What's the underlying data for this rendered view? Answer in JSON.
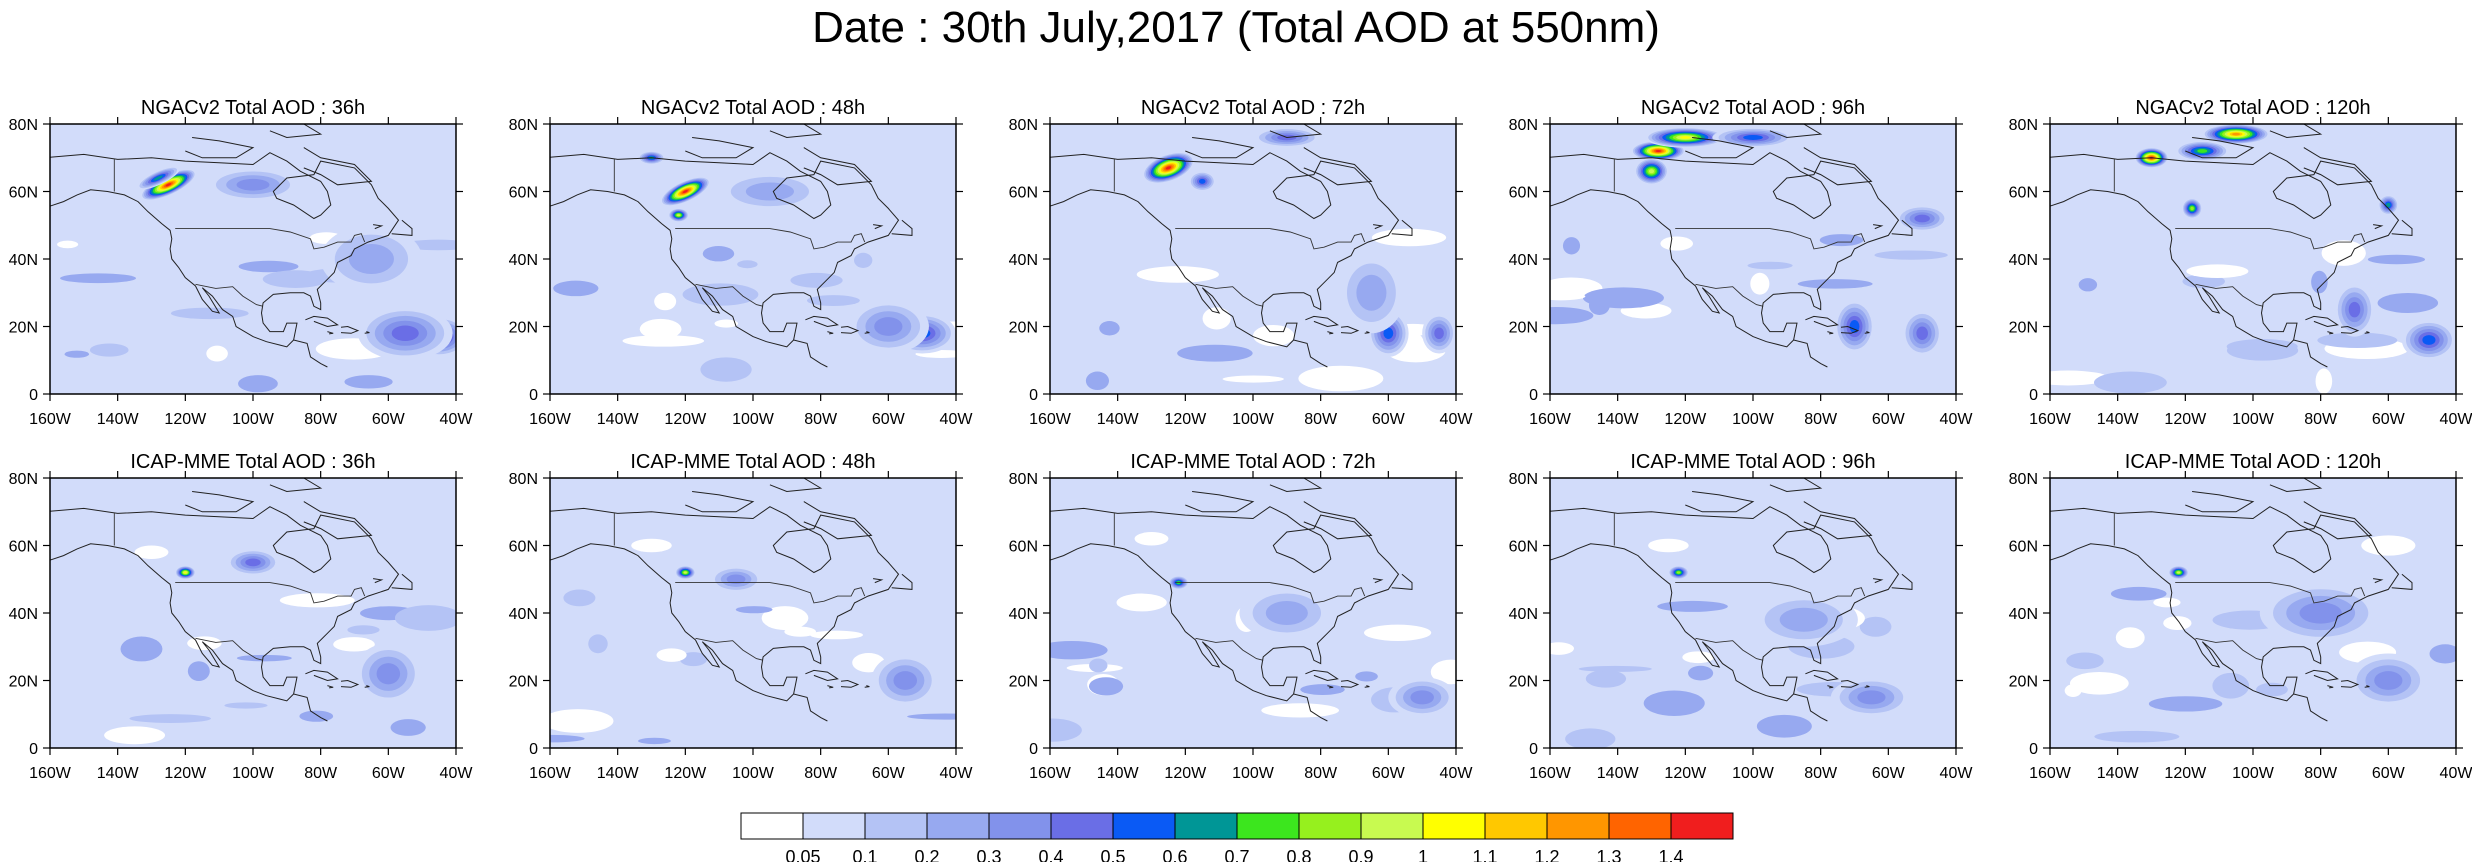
{
  "title": "Date : 30th July,2017 (Total AOD at 550nm)",
  "axes": {
    "lon_ticks": [
      "160W",
      "140W",
      "120W",
      "100W",
      "80W",
      "60W",
      "40W"
    ],
    "lat_ticks": [
      "80N",
      "60N",
      "40N",
      "20N",
      "0"
    ],
    "lon_range": [
      -160,
      -40
    ],
    "lat_range": [
      0,
      80
    ]
  },
  "panels": [
    {
      "title": "NGACv2 Total AOD : 36h",
      "blobs": [
        {
          "lon": -125,
          "lat": 62,
          "rx": 9,
          "ry": 3,
          "v": 1.4,
          "rot": -25
        },
        {
          "lon": -128,
          "lat": 64,
          "rx": 7,
          "ry": 2,
          "v": 0.6,
          "rot": -25
        },
        {
          "lon": -45,
          "lat": 17,
          "rx": 9,
          "ry": 6,
          "v": 0.6,
          "rot": 0
        },
        {
          "lon": -55,
          "lat": 18,
          "rx": 14,
          "ry": 8,
          "v": 0.4,
          "rot": 0
        },
        {
          "lon": -100,
          "lat": 62,
          "rx": 14,
          "ry": 5,
          "v": 0.3,
          "rot": 0
        },
        {
          "lon": -65,
          "lat": 40,
          "rx": 15,
          "ry": 10,
          "v": 0.2,
          "rot": 0
        }
      ]
    },
    {
      "title": "NGACv2 Total AOD : 48h",
      "blobs": [
        {
          "lon": -120,
          "lat": 60,
          "rx": 8,
          "ry": 3,
          "v": 1.4,
          "rot": -25
        },
        {
          "lon": -130,
          "lat": 70,
          "rx": 4,
          "ry": 2,
          "v": 0.6,
          "rot": 0
        },
        {
          "lon": -122,
          "lat": 53,
          "rx": 3,
          "ry": 2,
          "v": 0.9,
          "rot": 0
        },
        {
          "lon": -50,
          "lat": 18,
          "rx": 10,
          "ry": 6,
          "v": 0.5,
          "rot": 0
        },
        {
          "lon": -60,
          "lat": 20,
          "rx": 12,
          "ry": 8,
          "v": 0.3,
          "rot": 0
        },
        {
          "lon": -95,
          "lat": 60,
          "rx": 16,
          "ry": 6,
          "v": 0.25,
          "rot": 0
        }
      ]
    },
    {
      "title": "NGACv2 Total AOD : 72h",
      "blobs": [
        {
          "lon": -125,
          "lat": 67,
          "rx": 8,
          "ry": 4,
          "v": 1.4,
          "rot": -20
        },
        {
          "lon": -115,
          "lat": 63,
          "rx": 4,
          "ry": 3,
          "v": 0.5,
          "rot": 0
        },
        {
          "lon": -60,
          "lat": 18,
          "rx": 6,
          "ry": 7,
          "v": 0.55,
          "rot": 0
        },
        {
          "lon": -45,
          "lat": 18,
          "rx": 5,
          "ry": 6,
          "v": 0.4,
          "rot": 0
        },
        {
          "lon": -90,
          "lat": 76,
          "rx": 10,
          "ry": 3,
          "v": 0.45,
          "rot": 0
        },
        {
          "lon": -65,
          "lat": 30,
          "rx": 10,
          "ry": 12,
          "v": 0.25,
          "rot": 0
        }
      ]
    },
    {
      "title": "NGACv2 Total AOD : 96h",
      "blobs": [
        {
          "lon": -128,
          "lat": 72,
          "rx": 8,
          "ry": 3,
          "v": 1.4,
          "rot": 0
        },
        {
          "lon": -120,
          "lat": 76,
          "rx": 12,
          "ry": 3,
          "v": 1.0,
          "rot": 0
        },
        {
          "lon": -130,
          "lat": 66,
          "rx": 5,
          "ry": 4,
          "v": 0.9,
          "rot": 0
        },
        {
          "lon": -100,
          "lat": 76,
          "rx": 12,
          "ry": 3,
          "v": 0.5,
          "rot": 0
        },
        {
          "lon": -70,
          "lat": 20,
          "rx": 6,
          "ry": 8,
          "v": 0.55,
          "rot": 0
        },
        {
          "lon": -50,
          "lat": 18,
          "rx": 6,
          "ry": 7,
          "v": 0.45,
          "rot": 0
        },
        {
          "lon": -50,
          "lat": 52,
          "rx": 8,
          "ry": 4,
          "v": 0.4,
          "rot": 0
        }
      ]
    },
    {
      "title": "NGACv2 Total AOD : 120h",
      "blobs": [
        {
          "lon": -130,
          "lat": 70,
          "rx": 5,
          "ry": 3,
          "v": 1.4,
          "rot": 0
        },
        {
          "lon": -105,
          "lat": 77,
          "rx": 10,
          "ry": 3,
          "v": 1.2,
          "rot": 0
        },
        {
          "lon": -115,
          "lat": 72,
          "rx": 8,
          "ry": 3,
          "v": 0.7,
          "rot": 0
        },
        {
          "lon": -118,
          "lat": 55,
          "rx": 3,
          "ry": 3,
          "v": 0.8,
          "rot": 0
        },
        {
          "lon": -70,
          "lat": 25,
          "rx": 6,
          "ry": 8,
          "v": 0.4,
          "rot": 0
        },
        {
          "lon": -48,
          "lat": 16,
          "rx": 8,
          "ry": 6,
          "v": 0.5,
          "rot": 0
        },
        {
          "lon": -60,
          "lat": 56,
          "rx": 3,
          "ry": 3,
          "v": 0.6,
          "rot": 0
        }
      ]
    },
    {
      "title": "ICAP-MME Total AOD : 36h",
      "blobs": [
        {
          "lon": -120,
          "lat": 52,
          "rx": 3,
          "ry": 2,
          "v": 1.0,
          "rot": 0
        },
        {
          "lon": -100,
          "lat": 55,
          "rx": 8,
          "ry": 4,
          "v": 0.4,
          "rot": 0
        },
        {
          "lon": -60,
          "lat": 22,
          "rx": 10,
          "ry": 9,
          "v": 0.35,
          "rot": 0
        },
        {
          "lon": -130,
          "lat": 58,
          "rx": 5,
          "ry": 2,
          "v": 0.02,
          "rot": 0
        }
      ]
    },
    {
      "title": "ICAP-MME Total AOD : 48h",
      "blobs": [
        {
          "lon": -120,
          "lat": 52,
          "rx": 3,
          "ry": 2,
          "v": 0.9,
          "rot": 0
        },
        {
          "lon": -105,
          "lat": 50,
          "rx": 8,
          "ry": 4,
          "v": 0.3,
          "rot": 0
        },
        {
          "lon": -55,
          "lat": 20,
          "rx": 10,
          "ry": 8,
          "v": 0.35,
          "rot": 0
        },
        {
          "lon": -130,
          "lat": 60,
          "rx": 6,
          "ry": 2,
          "v": 0.02,
          "rot": 0
        }
      ]
    },
    {
      "title": "ICAP-MME Total AOD : 72h",
      "blobs": [
        {
          "lon": -122,
          "lat": 49,
          "rx": 3,
          "ry": 2,
          "v": 0.7,
          "rot": 0
        },
        {
          "lon": -90,
          "lat": 40,
          "rx": 14,
          "ry": 8,
          "v": 0.25,
          "rot": 0
        },
        {
          "lon": -50,
          "lat": 15,
          "rx": 10,
          "ry": 6,
          "v": 0.35,
          "rot": 0
        },
        {
          "lon": -130,
          "lat": 62,
          "rx": 5,
          "ry": 2,
          "v": 0.02,
          "rot": 0
        }
      ]
    },
    {
      "title": "ICAP-MME Total AOD : 96h",
      "blobs": [
        {
          "lon": -122,
          "lat": 52,
          "rx": 3,
          "ry": 2,
          "v": 0.8,
          "rot": 0
        },
        {
          "lon": -85,
          "lat": 38,
          "rx": 16,
          "ry": 8,
          "v": 0.25,
          "rot": 0
        },
        {
          "lon": -65,
          "lat": 15,
          "rx": 12,
          "ry": 6,
          "v": 0.3,
          "rot": 0
        },
        {
          "lon": -125,
          "lat": 60,
          "rx": 6,
          "ry": 2,
          "v": 0.02,
          "rot": 0
        }
      ]
    },
    {
      "title": "ICAP-MME Total AOD : 120h",
      "blobs": [
        {
          "lon": -122,
          "lat": 52,
          "rx": 3,
          "ry": 2,
          "v": 0.9,
          "rot": 0
        },
        {
          "lon": -80,
          "lat": 40,
          "rx": 18,
          "ry": 9,
          "v": 0.3,
          "rot": 0
        },
        {
          "lon": -60,
          "lat": 20,
          "rx": 12,
          "ry": 8,
          "v": 0.3,
          "rot": 0
        },
        {
          "lon": -60,
          "lat": 60,
          "rx": 8,
          "ry": 3,
          "v": 0.02,
          "rot": 0
        }
      ]
    }
  ],
  "colorbar": {
    "labels": [
      "0.05",
      "0.1",
      "0.2",
      "0.3",
      "0.4",
      "0.5",
      "0.6",
      "0.7",
      "0.8",
      "0.9",
      "1",
      "1.1",
      "1.2",
      "1.3",
      "1.4"
    ],
    "colors": [
      "#ffffff",
      "#d2dcfa",
      "#b4c3f5",
      "#97a9f0",
      "#8292eb",
      "#6a6ee6",
      "#0a5af5",
      "#009696",
      "#3ce61e",
      "#96f01e",
      "#c8fa50",
      "#ffff00",
      "#ffc800",
      "#ff9600",
      "#ff6400",
      "#f01e1e"
    ]
  }
}
